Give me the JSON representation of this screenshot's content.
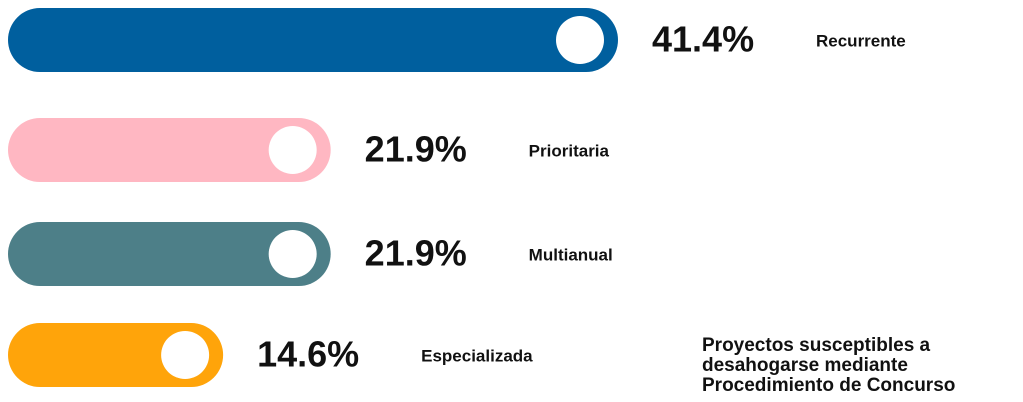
{
  "chart_data": {
    "type": "bar",
    "orientation": "horizontal",
    "title": "Proyectos susceptibles a desahogarse mediante Procedimiento de Concurso",
    "categories": [
      "Recurrente",
      "Prioritaria",
      "Multianual",
      "Especializada"
    ],
    "values": [
      41.4,
      21.9,
      21.9,
      14.6
    ],
    "value_labels": [
      "41.4%",
      "21.9%",
      "21.9%",
      "14.6%"
    ],
    "colors": [
      "#005f9e",
      "#ffb7c2",
      "#4d7f88",
      "#ffa40a"
    ]
  }
}
